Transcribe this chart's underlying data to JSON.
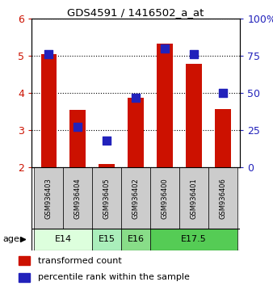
{
  "title": "GDS4591 / 1416502_a_at",
  "samples": [
    "GSM936403",
    "GSM936404",
    "GSM936405",
    "GSM936402",
    "GSM936400",
    "GSM936401",
    "GSM936406"
  ],
  "red_values": [
    5.05,
    3.55,
    2.08,
    3.88,
    5.32,
    4.78,
    3.57
  ],
  "blue_values": [
    76,
    27,
    18,
    47,
    80,
    76,
    50
  ],
  "ylim_left": [
    2,
    6
  ],
  "ylim_right": [
    0,
    100
  ],
  "yticks_left": [
    2,
    3,
    4,
    5,
    6
  ],
  "yticks_right": [
    0,
    25,
    50,
    75,
    100
  ],
  "yticklabels_right": [
    "0",
    "25",
    "50",
    "75",
    "100%"
  ],
  "age_groups": [
    {
      "label": "E14",
      "start": 0,
      "end": 1,
      "color": "#ddffdd"
    },
    {
      "label": "E15",
      "start": 2,
      "end": 2,
      "color": "#aaeebb"
    },
    {
      "label": "E16",
      "start": 3,
      "end": 3,
      "color": "#88dd88"
    },
    {
      "label": "E17.5",
      "start": 4,
      "end": 6,
      "color": "#55cc55"
    }
  ],
  "red_color": "#cc1100",
  "blue_color": "#2222bb",
  "bar_bottom": 2,
  "bar_width": 0.55,
  "dot_size": 50,
  "left_tick_color": "#cc1100",
  "right_tick_color": "#2222bb",
  "legend_red": "transformed count",
  "legend_blue": "percentile rank within the sample",
  "sample_box_color": "#cccccc",
  "age_label": "age"
}
